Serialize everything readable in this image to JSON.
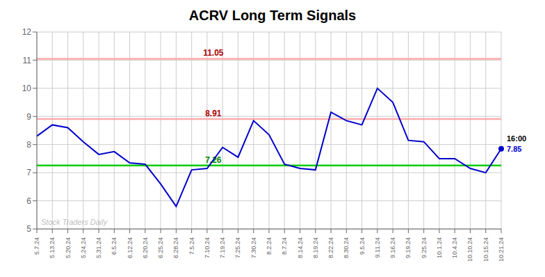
{
  "chart_data": {
    "type": "line",
    "title": "ACRV Long Term Signals",
    "categories": [
      "5.7.24",
      "5.13.24",
      "5.20.24",
      "5.24.24",
      "5.31.24",
      "6.5.24",
      "6.12.24",
      "6.20.24",
      "6.25.24",
      "6.28.24",
      "7.5.24",
      "7.10.24",
      "7.19.24",
      "7.25.24",
      "7.30.24",
      "8.2.24",
      "8.7.24",
      "8.14.24",
      "8.19.24",
      "8.22.24",
      "8.30.24",
      "9.5.24",
      "9.11.24",
      "9.16.24",
      "9.19.24",
      "9.25.24",
      "10.1.24",
      "10.4.24",
      "10.10.24",
      "10.15.24",
      "10.21.24"
    ],
    "values": [
      8.3,
      8.7,
      8.6,
      8.1,
      7.65,
      7.75,
      7.35,
      7.3,
      6.6,
      5.8,
      7.1,
      7.15,
      7.9,
      7.55,
      8.85,
      8.35,
      7.3,
      7.15,
      7.1,
      9.15,
      8.85,
      8.7,
      10.0,
      9.5,
      8.15,
      8.1,
      7.5,
      7.5,
      7.15,
      7.0,
      7.85
    ],
    "color": "#0000cc",
    "ylim": [
      5,
      12
    ],
    "yticks": [
      5,
      6,
      7,
      8,
      9,
      10,
      11,
      12
    ],
    "grid": true,
    "reference_lines": [
      {
        "value": 11.05,
        "label": "11.05",
        "color": "#ffaaaa",
        "label_color": "#aa0000"
      },
      {
        "value": 8.91,
        "label": "8.91",
        "color": "#ffaaaa",
        "label_color": "#aa0000"
      },
      {
        "value": 7.26,
        "label": "7.26",
        "color": "#00cc00",
        "label_color": "#008800"
      }
    ],
    "annotations": [
      {
        "text": "16:00",
        "x": "10.21.24",
        "y": 7.85,
        "color": "#000000"
      },
      {
        "text": "7.85",
        "x": "10.21.24",
        "y": 7.85,
        "color": "#0000cc"
      }
    ],
    "watermark": "Stock Traders Daily"
  }
}
